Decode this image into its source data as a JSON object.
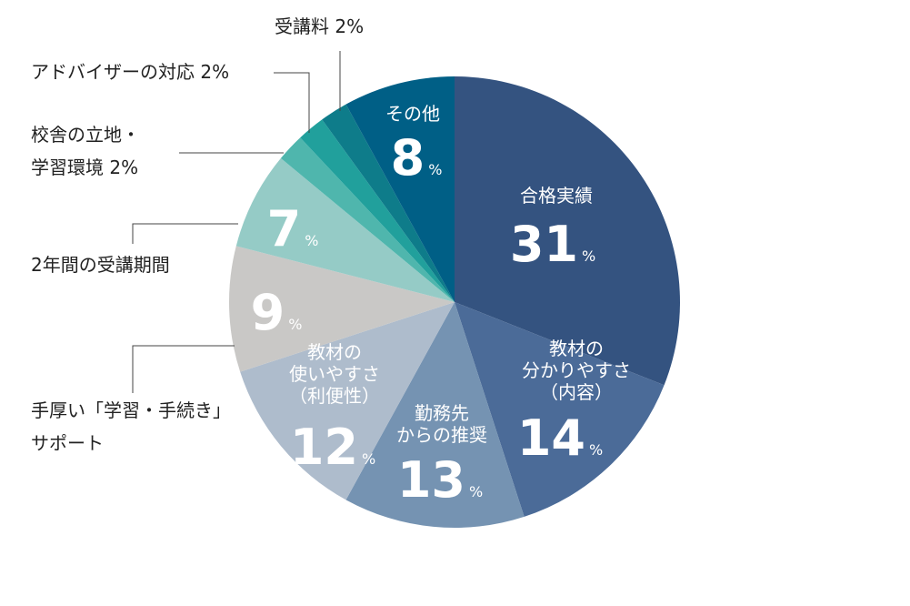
{
  "chart_data": {
    "type": "pie",
    "slices": [
      {
        "label": "合格実績",
        "value": 31,
        "value_text": "31",
        "unit": "%",
        "color": "#345380",
        "label_pos": "inside"
      },
      {
        "label_lines": [
          "教材の",
          "分かりやすさ",
          "（内容）"
        ],
        "value": 14,
        "value_text": "14",
        "unit": "%",
        "color": "#4b6b98",
        "label_pos": "inside"
      },
      {
        "label_lines": [
          "勤務先",
          "からの推奨"
        ],
        "value": 13,
        "value_text": "13",
        "unit": "%",
        "color": "#7593b2",
        "label_pos": "inside"
      },
      {
        "label_lines": [
          "教材の",
          "使いやすさ",
          "（利便性）"
        ],
        "value": 12,
        "value_text": "12",
        "unit": "%",
        "color": "#aebccc",
        "label_pos": "inside"
      },
      {
        "label_lines": [
          "手厚い「学習・手続き」",
          "サポート"
        ],
        "value": 9,
        "value_text": "9",
        "unit": "%",
        "color": "#c9c8c6",
        "label_pos": "outside-leader"
      },
      {
        "label": "2年間の受講期間",
        "value": 7,
        "value_text": "7",
        "unit": "%",
        "color": "#95cbc6",
        "label_pos": "outside-leader"
      },
      {
        "label_lines": [
          "校舎の立地・",
          "学習環境 2%"
        ],
        "value": 2,
        "color": "#4fb6ad",
        "label_pos": "outside"
      },
      {
        "label": "アドバイザーの対応 2%",
        "value": 2,
        "color": "#21a09c",
        "label_pos": "outside"
      },
      {
        "label": "受講料 2%",
        "value": 2,
        "color": "#0e7c8a",
        "label_pos": "outside"
      },
      {
        "label": "その他",
        "value": 8,
        "value_text": "8",
        "unit": "%",
        "color": "#005f86",
        "label_pos": "inside"
      }
    ]
  }
}
